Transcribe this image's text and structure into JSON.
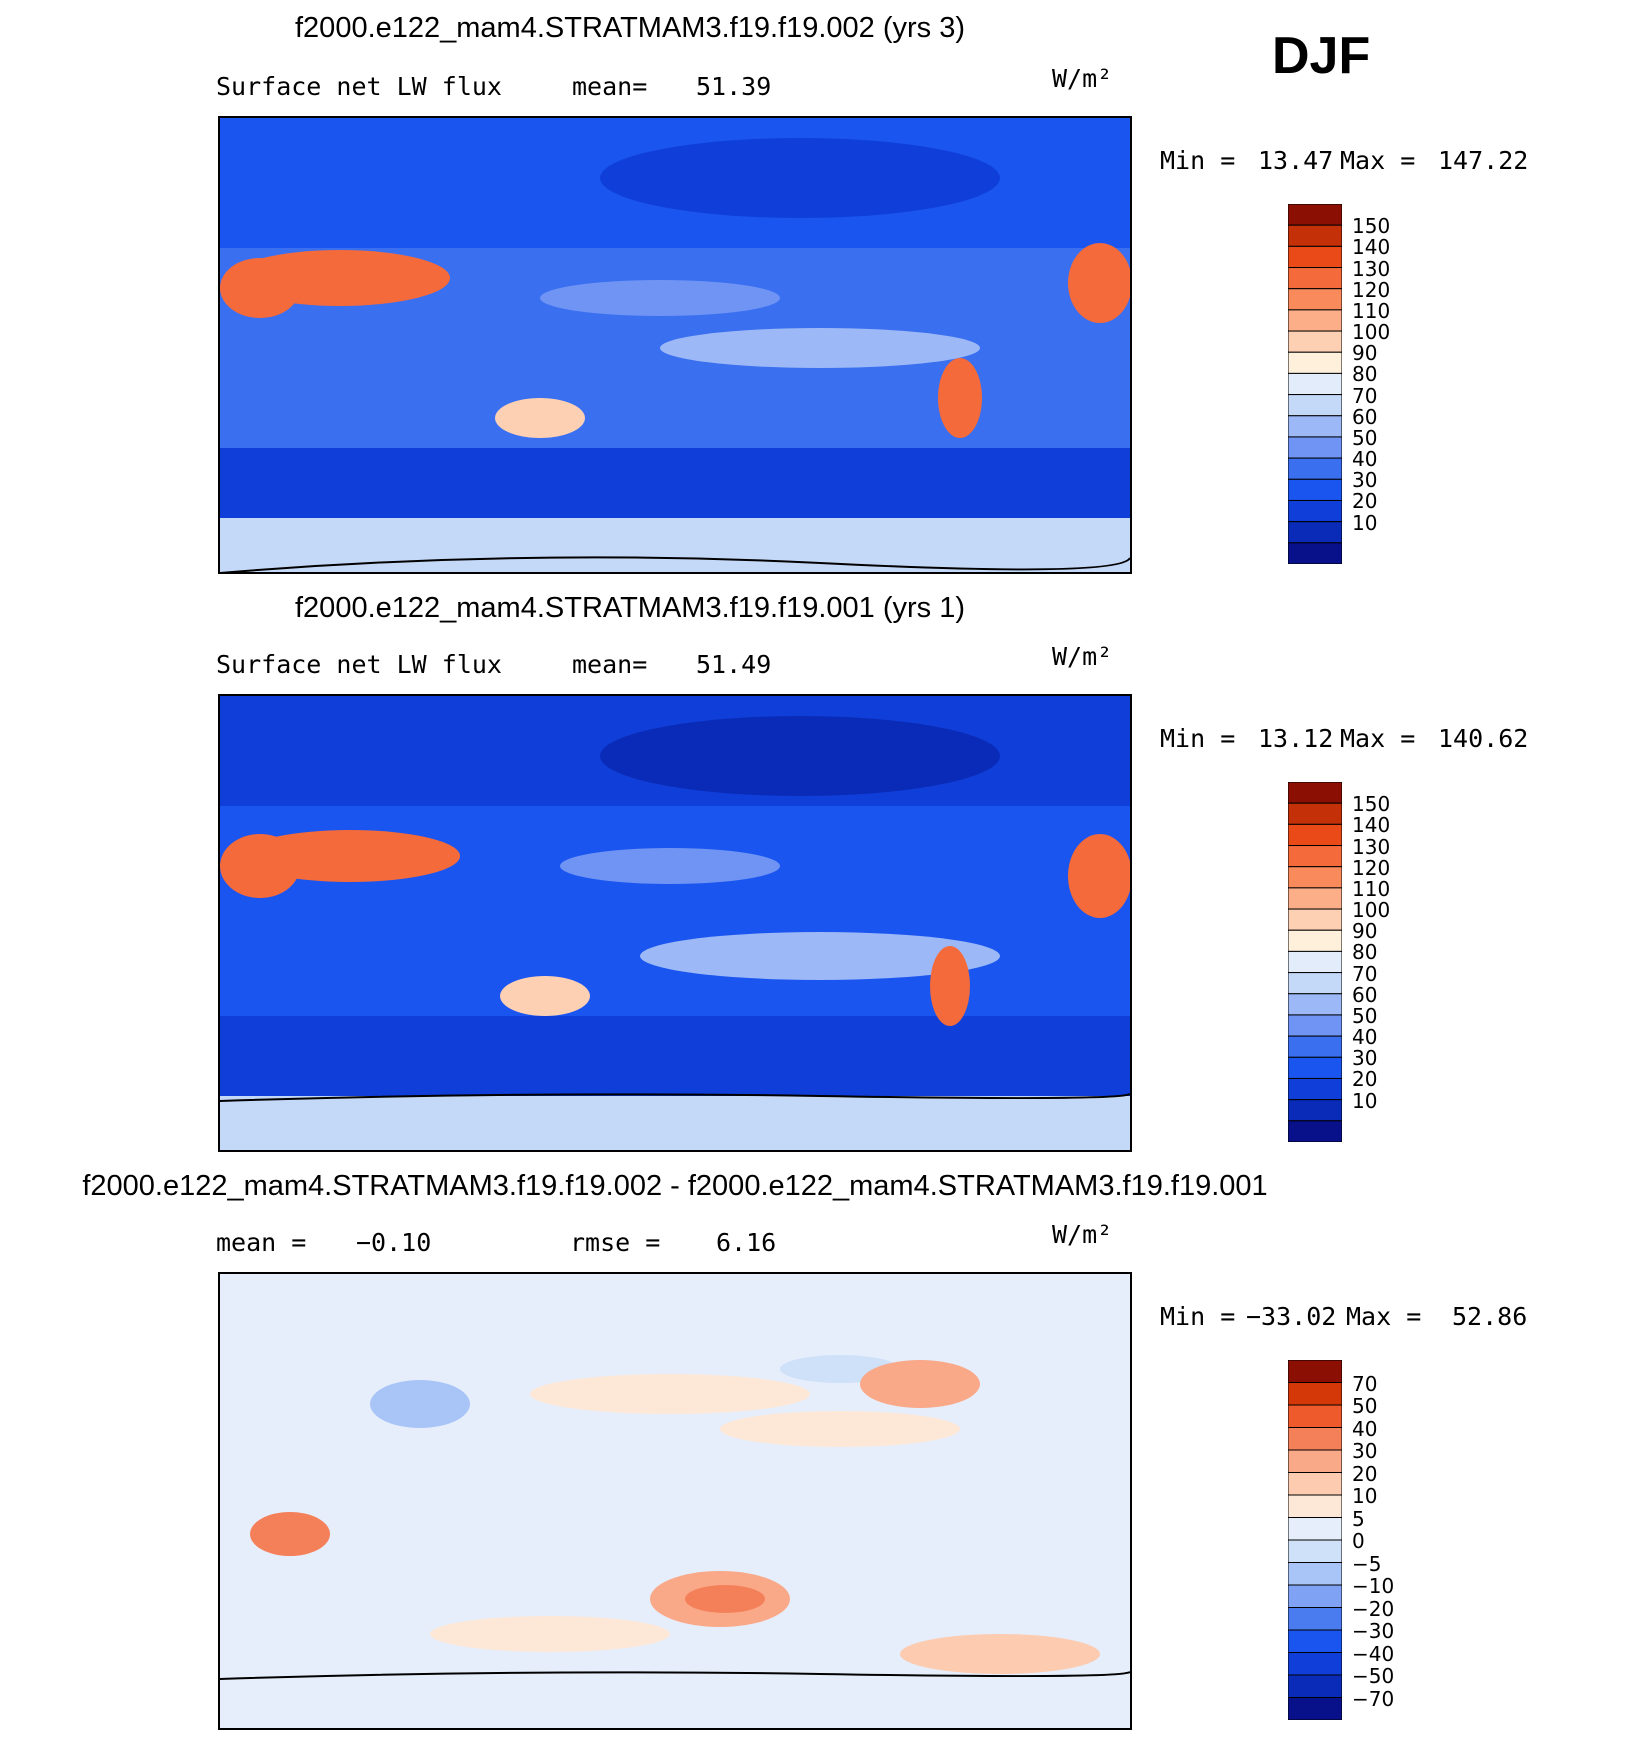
{
  "season": "DJF",
  "units": "W/m²",
  "colors": {
    "abs_scale": [
      "#08108a",
      "#0a2bb8",
      "#0f3fd8",
      "#1a55f0",
      "#3a6ff0",
      "#6f94f4",
      "#9cb8f6",
      "#c4d8f8",
      "#e2ecfa",
      "#fff0dc",
      "#fdd0b4",
      "#fcae88",
      "#f88a5c",
      "#f46a3a",
      "#ea4a18",
      "#c43008",
      "#8c0f04"
    ],
    "diff_scale": [
      "#08108a",
      "#0a2bb8",
      "#0f3fd8",
      "#1a55f0",
      "#4a7cf0",
      "#7fa2f4",
      "#a9c4f7",
      "#cfe0f9",
      "#e6eefb",
      "#fde8d8",
      "#fccbb0",
      "#f9a888",
      "#f4805a",
      "#ee5a2c",
      "#d43808",
      "#8c0f04"
    ]
  },
  "panels": [
    {
      "title": "f2000.e122_mam4.STRATMAM3.f19.f19.002 (yrs 3)",
      "left_label": "Surface net LW flux",
      "center_label": "mean=",
      "center_value": "51.39",
      "min_label": "Min =",
      "min_value": "13.47",
      "max_label": "Max =",
      "max_value": "147.22"
    },
    {
      "title": "f2000.e122_mam4.STRATMAM3.f19.f19.001 (yrs 1)",
      "left_label": "Surface net LW flux",
      "center_label": "mean=",
      "center_value": "51.49",
      "min_label": "Min =",
      "min_value": "13.12",
      "max_label": "Max =",
      "max_value": "140.62"
    },
    {
      "title": "f2000.e122_mam4.STRATMAM3.f19.f19.002 - f2000.e122_mam4.STRATMAM3.f19.f19.001",
      "left_label": "mean =",
      "left_value": "−0.10",
      "center_label": "rmse =",
      "center_value": "6.16",
      "min_label": "Min =",
      "min_value": "−33.02",
      "max_label": "Max =",
      "max_value": "52.86"
    }
  ],
  "chart_data": [
    {
      "type": "heatmap",
      "title": "f2000.e122_mam4.STRATMAM3.f19.f19.002 (yrs 3)",
      "variable": "Surface net LW flux",
      "units": "W/m²",
      "mean": 51.39,
      "min": 13.47,
      "max": 147.22,
      "colorbar_levels": [
        150,
        140,
        130,
        120,
        110,
        100,
        90,
        80,
        70,
        60,
        50,
        40,
        30,
        20,
        10
      ]
    },
    {
      "type": "heatmap",
      "title": "f2000.e122_mam4.STRATMAM3.f19.f19.001 (yrs 1)",
      "variable": "Surface net LW flux",
      "units": "W/m²",
      "mean": 51.49,
      "min": 13.12,
      "max": 140.62,
      "colorbar_levels": [
        150,
        140,
        130,
        120,
        110,
        100,
        90,
        80,
        70,
        60,
        50,
        40,
        30,
        20,
        10
      ]
    },
    {
      "type": "heatmap",
      "title": "f2000.e122_mam4.STRATMAM3.f19.f19.002 - f2000.e122_mam4.STRATMAM3.f19.f19.001",
      "units": "W/m²",
      "mean": -0.1,
      "rmse": 6.16,
      "min": -33.02,
      "max": 52.86,
      "colorbar_levels": [
        "70",
        "50",
        "40",
        "30",
        "20",
        "10",
        "5",
        "0",
        "−5",
        "−10",
        "−20",
        "−30",
        "−40",
        "−50",
        "−70"
      ]
    }
  ]
}
